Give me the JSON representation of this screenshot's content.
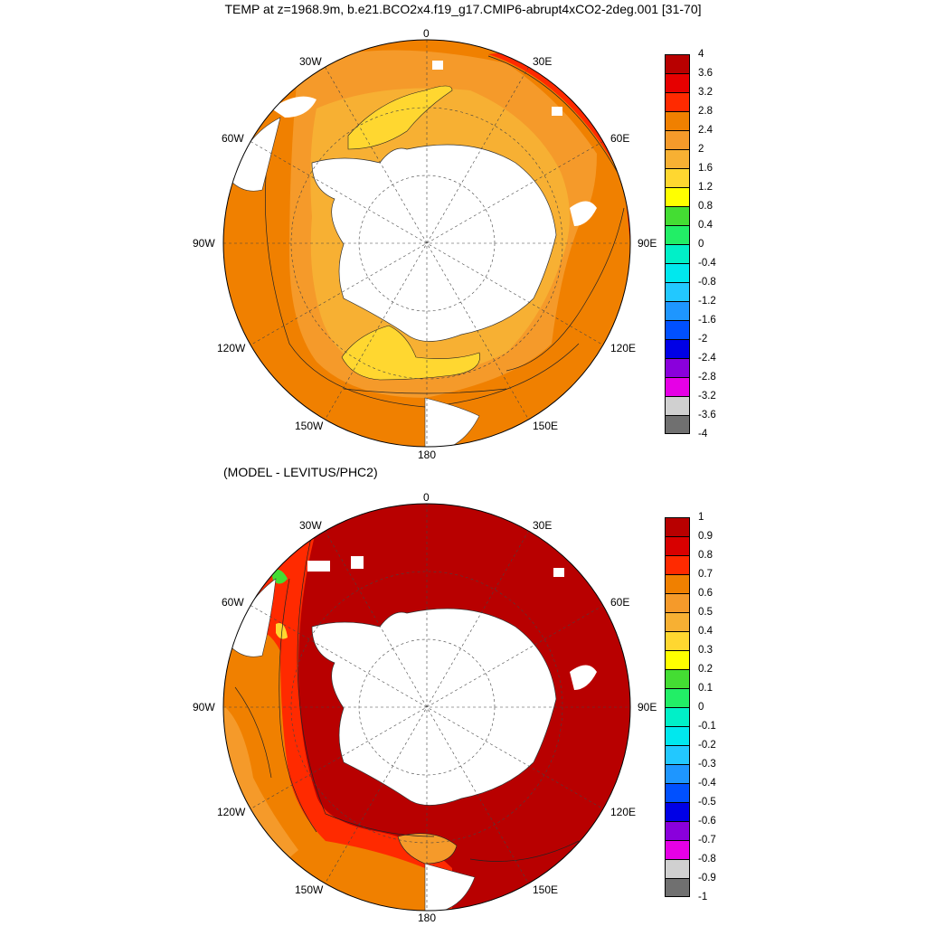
{
  "title": "TEMP at z=1968.9m, b.e21.BCO2x4.f19_g17.CMIP6-abrupt4xCO2-2deg.001 [31-70]",
  "subtitle": "(MODEL - LEVITUS/PHC2)",
  "lon_labels": {
    "deg0": "0",
    "e30": "30E",
    "e60": "60E",
    "e90": "90E",
    "e120": "120E",
    "e150": "150E",
    "deg180": "180",
    "w150": "150W",
    "w120": "120W",
    "w90": "90W",
    "w60": "60W",
    "w30": "30W"
  },
  "colorbar_top": {
    "ticks": [
      "4",
      "3.6",
      "3.2",
      "2.8",
      "2.4",
      "2",
      "1.6",
      "1.2",
      "0.8",
      "0.4",
      "0",
      "-0.4",
      "-0.8",
      "-1.2",
      "-1.6",
      "-2",
      "-2.4",
      "-2.8",
      "-3.2",
      "-3.6",
      "-4"
    ],
    "colors": [
      "#b80000",
      "#e60000",
      "#ff2a00",
      "#f08000",
      "#f59a2a",
      "#f7b033",
      "#ffd730",
      "#ffff00",
      "#44dd33",
      "#22ee66",
      "#00f0c8",
      "#00e8ee",
      "#22c8ff",
      "#1e96ff",
      "#0050ff",
      "#0000e6",
      "#8a00dc",
      "#e600e6",
      "#d0d0d0",
      "#707070"
    ]
  },
  "colorbar_bottom": {
    "ticks": [
      "1",
      "0.9",
      "0.8",
      "0.7",
      "0.6",
      "0.5",
      "0.4",
      "0.3",
      "0.2",
      "0.1",
      "0",
      "-0.1",
      "-0.2",
      "-0.3",
      "-0.4",
      "-0.5",
      "-0.6",
      "-0.7",
      "-0.8",
      "-0.9",
      "-1"
    ],
    "colors": [
      "#b80000",
      "#d80000",
      "#ff2a00",
      "#f08000",
      "#f59a2a",
      "#f7b033",
      "#ffd730",
      "#ffff00",
      "#44dd33",
      "#22ee66",
      "#00f0c8",
      "#00e8ee",
      "#22c8ff",
      "#1e96ff",
      "#0050ff",
      "#0000e6",
      "#8a00dc",
      "#e600e6",
      "#d0d0d0",
      "#707070"
    ]
  }
}
